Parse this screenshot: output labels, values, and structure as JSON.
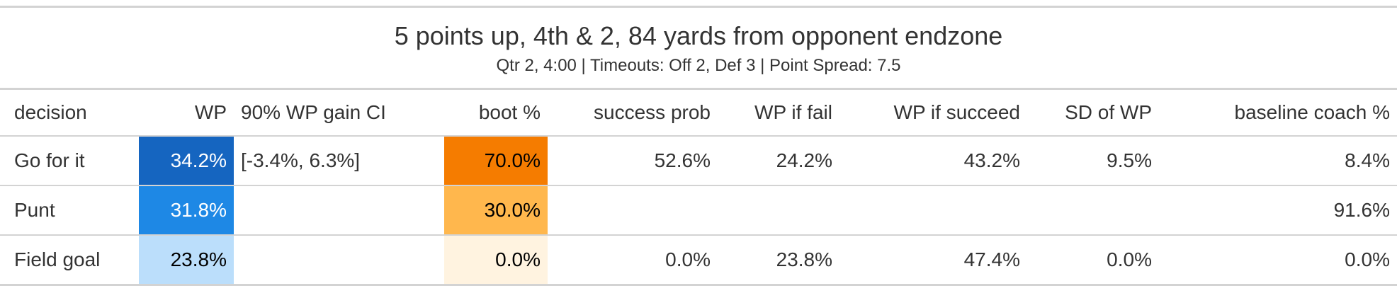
{
  "header": {
    "title": "5 points up, 4th & 2, 84 yards from opponent endzone",
    "subtitle": "Qtr 2, 4:00 | Timeouts: Off 2, Def 3 | Point Spread: 7.5"
  },
  "table": {
    "columns": [
      "decision",
      "WP",
      "90% WP gain CI",
      "boot %",
      "success prob",
      "WP if fail",
      "WP if succeed",
      "SD of WP",
      "baseline coach %"
    ],
    "rows": [
      {
        "decision": "Go for it",
        "wp": "34.2%",
        "ci": "[-3.4%, 6.3%]",
        "boot": "70.0%",
        "success_prob": "52.6%",
        "wp_fail": "24.2%",
        "wp_succeed": "43.2%",
        "sd_wp": "9.5%",
        "baseline": "8.4%",
        "wp_bg": "#1565c0",
        "wp_fg": "#ffffff",
        "boot_bg": "#f57c00",
        "boot_fg": "#000000"
      },
      {
        "decision": "Punt",
        "wp": "31.8%",
        "ci": "",
        "boot": "30.0%",
        "success_prob": "",
        "wp_fail": "",
        "wp_succeed": "",
        "sd_wp": "",
        "baseline": "91.6%",
        "wp_bg": "#1e88e5",
        "wp_fg": "#ffffff",
        "boot_bg": "#ffb74d",
        "boot_fg": "#000000"
      },
      {
        "decision": "Field goal",
        "wp": "23.8%",
        "ci": "",
        "boot": "0.0%",
        "success_prob": "0.0%",
        "wp_fail": "23.8%",
        "wp_succeed": "47.4%",
        "sd_wp": "0.0%",
        "baseline": "0.0%",
        "wp_bg": "#bbdefb",
        "wp_fg": "#000000",
        "boot_bg": "#fff3e0",
        "boot_fg": "#000000"
      }
    ]
  }
}
